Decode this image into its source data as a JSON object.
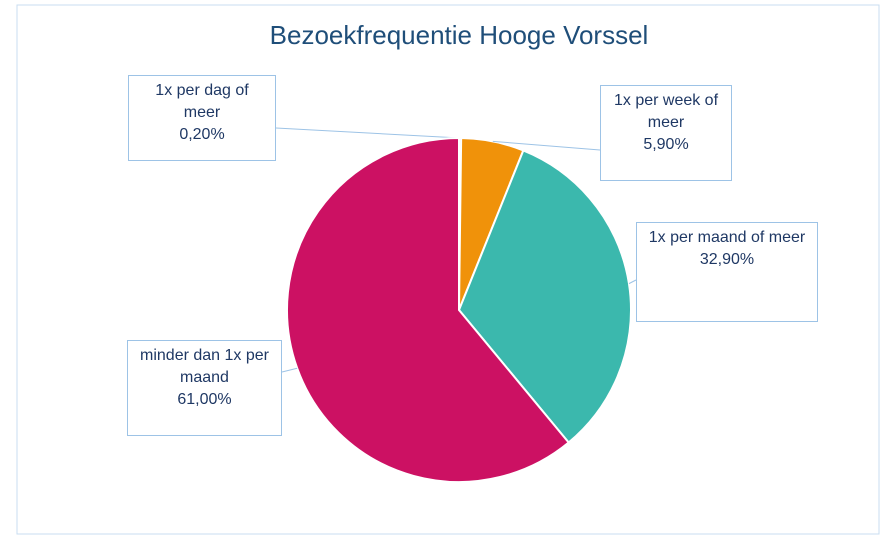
{
  "chart_data": {
    "type": "pie",
    "title": "Bezoekfrequentie Hooge Vorssel",
    "categories": [
      "1x per dag of meer",
      "1x per week of meer",
      "1x per maand of meer",
      "minder dan 1x per maand"
    ],
    "values": [
      0.2,
      5.9,
      32.9,
      61.0
    ],
    "value_labels": [
      "0,20%",
      "5,90%",
      "32,90%",
      "61,00%"
    ],
    "colors": [
      "#5b9bd5",
      "#f0920a",
      "#3bb8ad",
      "#cc1163"
    ]
  }
}
